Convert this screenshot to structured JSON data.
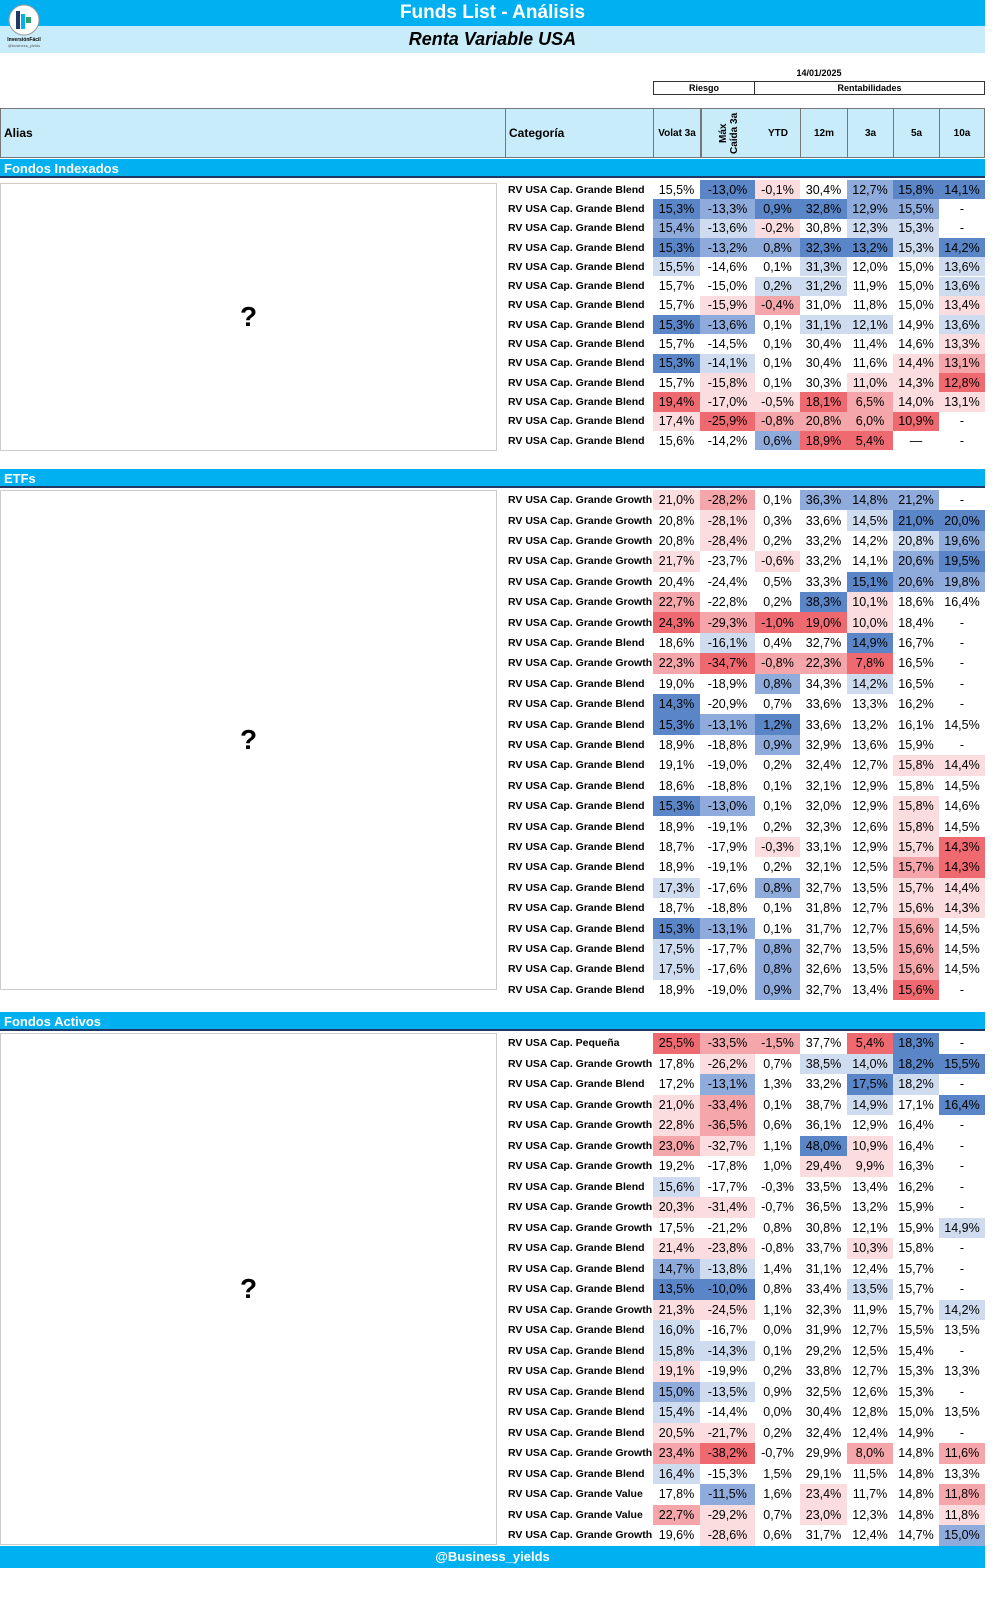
{
  "header": {
    "title": "Funds List - Análisis",
    "subtitle": "Renta Variable USA",
    "date": "14/01/2025",
    "group_riesgo": "Riesgo",
    "group_rent": "Rentabilidades",
    "logo_text": "InversiónFácil",
    "logo_handle": "@Business_yields"
  },
  "columns": {
    "alias": "Alias",
    "categoria": "Categoría",
    "volat": "Volat 3a",
    "maxcaida": "Máx Caída 3a",
    "ytd": "YTD",
    "m12": "12m",
    "a3": "3a",
    "a5": "5a",
    "a10": "10a"
  },
  "palette": {
    "B3": "#5a86c7",
    "B2": "#8fabdc",
    "B1": "#cfdcf0",
    "W": "#ffffff",
    "R1": "#fbdcdf",
    "R2": "#f5a6aa",
    "R3": "#ef6a70"
  },
  "footer": "@Business_yields",
  "sections": [
    {
      "name": "Fondos Indexados",
      "alias_placeholder": "?",
      "rows": [
        {
          "cat": "RV USA Cap. Grande Blend",
          "v": [
            "15,5%",
            "-13,0%",
            "-0,1%",
            "30,4%",
            "12,7%",
            "15,8%",
            "14,1%"
          ],
          "c": "W B3 R1 W B2 B3 B3"
        },
        {
          "cat": "RV USA Cap. Grande Blend",
          "v": [
            "15,3%",
            "-13,3%",
            "0,9%",
            "32,8%",
            "12,9%",
            "15,5%",
            "-"
          ],
          "c": "B3 B2 B3 B3 B2 B2 W"
        },
        {
          "cat": "RV USA Cap. Grande Blend",
          "v": [
            "15,4%",
            "-13,6%",
            "-0,2%",
            "30,8%",
            "12,3%",
            "15,3%",
            "-"
          ],
          "c": "B2 B1 R1 W B1 B1 W"
        },
        {
          "cat": "RV USA Cap. Grande Blend",
          "v": [
            "15,3%",
            "-13,2%",
            "0,8%",
            "32,3%",
            "13,2%",
            "15,3%",
            "14,2%"
          ],
          "c": "B3 B2 B2 B3 B3 B1 B3"
        },
        {
          "cat": "RV USA Cap. Grande Blend",
          "v": [
            "15,5%",
            "-14,6%",
            "0,1%",
            "31,3%",
            "12,0%",
            "15,0%",
            "13,6%"
          ],
          "c": "B1 W W B1 W W B1"
        },
        {
          "cat": "RV USA Cap. Grande Blend",
          "v": [
            "15,7%",
            "-15,0%",
            "0,2%",
            "31,2%",
            "11,9%",
            "15,0%",
            "13,6%"
          ],
          "c": "W W B1 B1 W W B1"
        },
        {
          "cat": "RV USA Cap. Grande Blend",
          "v": [
            "15,7%",
            "-15,9%",
            "-0,4%",
            "31,0%",
            "11,8%",
            "15,0%",
            "13,4%"
          ],
          "c": "W R1 R2 W W W R1"
        },
        {
          "cat": "RV USA Cap. Grande Blend",
          "v": [
            "15,3%",
            "-13,6%",
            "0,1%",
            "31,1%",
            "12,1%",
            "14,9%",
            "13,6%"
          ],
          "c": "B3 B2 W B1 B1 W B1"
        },
        {
          "cat": "RV USA Cap. Grande Blend",
          "v": [
            "15,7%",
            "-14,5%",
            "0,1%",
            "30,4%",
            "11,4%",
            "14,6%",
            "13,3%"
          ],
          "c": "W W W W W W R1"
        },
        {
          "cat": "RV USA Cap. Grande Blend",
          "v": [
            "15,3%",
            "-14,1%",
            "0,1%",
            "30,4%",
            "11,6%",
            "14,4%",
            "13,1%"
          ],
          "c": "B3 B1 W W W R1 R2"
        },
        {
          "cat": "RV USA Cap. Grande Blend",
          "v": [
            "15,7%",
            "-15,8%",
            "0,1%",
            "30,3%",
            "11,0%",
            "14,3%",
            "12,8%"
          ],
          "c": "W R1 W W R1 R1 R3"
        },
        {
          "cat": "RV USA Cap. Grande Blend",
          "v": [
            "19,4%",
            "-17,0%",
            "-0,5%",
            "18,1%",
            "6,5%",
            "14,0%",
            "13,1%"
          ],
          "c": "R3 R1 R1 R3 R2 R1 R1"
        },
        {
          "cat": "RV USA Cap. Grande Blend",
          "v": [
            "17,4%",
            "-25,9%",
            "-0,8%",
            "20,8%",
            "6,0%",
            "10,9%",
            "-"
          ],
          "c": "R1 R3 R2 R2 R2 R3 W"
        },
        {
          "cat": "RV USA Cap. Grande Blend",
          "v": [
            "15,6%",
            "-14,2%",
            "0,6%",
            "18,9%",
            "5,4%",
            "—",
            "-"
          ],
          "c": "W W B2 R3 R3 W W"
        }
      ]
    },
    {
      "name": "ETFs",
      "alias_placeholder": "?",
      "rows": [
        {
          "cat": "RV USA Cap. Grande Growth",
          "v": [
            "21,0%",
            "-28,2%",
            "0,1%",
            "36,3%",
            "14,8%",
            "21,2%",
            "-"
          ],
          "c": "R1 R2 W B2 B2 B2 W"
        },
        {
          "cat": "RV USA Cap. Grande Growth",
          "v": [
            "20,8%",
            "-28,1%",
            "0,3%",
            "33,6%",
            "14,5%",
            "21,0%",
            "20,0%"
          ],
          "c": "W R1 W W B1 B3 B3"
        },
        {
          "cat": "RV USA Cap. Grande Growth",
          "v": [
            "20,8%",
            "-28,4%",
            "0,2%",
            "33,2%",
            "14,2%",
            "20,8%",
            "19,6%"
          ],
          "c": "W R1 W W W B1 B2"
        },
        {
          "cat": "RV USA Cap. Grande Growth",
          "v": [
            "21,7%",
            "-23,7%",
            "-0,6%",
            "33,2%",
            "14,1%",
            "20,6%",
            "19,5%"
          ],
          "c": "R1 W R1 W W B2 B3"
        },
        {
          "cat": "RV USA Cap. Grande Growth",
          "v": [
            "20,4%",
            "-24,4%",
            "0,5%",
            "33,3%",
            "15,1%",
            "20,6%",
            "19,8%"
          ],
          "c": "W W W W B3 B2 B2"
        },
        {
          "cat": "RV USA Cap. Grande Growth",
          "v": [
            "22,7%",
            "-22,8%",
            "0,2%",
            "38,3%",
            "10,1%",
            "18,6%",
            "16,4%"
          ],
          "c": "R2 W W B3 R1 W W"
        },
        {
          "cat": "RV USA Cap. Grande Growth",
          "v": [
            "24,3%",
            "-29,3%",
            "-1,0%",
            "19,0%",
            "10,0%",
            "18,4%",
            "-"
          ],
          "c": "R3 R2 R3 R3 R1 W W"
        },
        {
          "cat": "RV USA Cap. Grande Blend",
          "v": [
            "18,6%",
            "-16,1%",
            "0,4%",
            "32,7%",
            "14,9%",
            "16,7%",
            "-"
          ],
          "c": "W B1 W W B3 W W"
        },
        {
          "cat": "RV USA Cap. Grande Growth",
          "v": [
            "22,3%",
            "-34,7%",
            "-0,8%",
            "22,3%",
            "7,8%",
            "16,5%",
            "-"
          ],
          "c": "R2 R3 R2 R2 R3 W W"
        },
        {
          "cat": "RV USA Cap. Grande Blend",
          "v": [
            "19,0%",
            "-18,9%",
            "0,8%",
            "34,3%",
            "14,2%",
            "16,5%",
            "-"
          ],
          "c": "W W B2 W B1 W W"
        },
        {
          "cat": "RV USA Cap. Grande Blend",
          "v": [
            "14,3%",
            "-20,9%",
            "0,7%",
            "33,6%",
            "13,3%",
            "16,2%",
            "-"
          ],
          "c": "B3 W W W W W W"
        },
        {
          "cat": "RV USA Cap. Grande Blend",
          "v": [
            "15,3%",
            "-13,1%",
            "1,2%",
            "33,6%",
            "13,2%",
            "16,1%",
            "14,5%"
          ],
          "c": "B3 B2 B3 W W W W"
        },
        {
          "cat": "RV USA Cap. Grande Blend",
          "v": [
            "18,9%",
            "-18,8%",
            "0,9%",
            "32,9%",
            "13,6%",
            "15,9%",
            "-"
          ],
          "c": "W W B2 W W W W"
        },
        {
          "cat": "RV USA Cap. Grande Blend",
          "v": [
            "19,1%",
            "-19,0%",
            "0,2%",
            "32,4%",
            "12,7%",
            "15,8%",
            "14,4%"
          ],
          "c": "W W W W W R1 R1"
        },
        {
          "cat": "RV USA Cap. Grande Blend",
          "v": [
            "18,6%",
            "-18,8%",
            "0,1%",
            "32,1%",
            "12,9%",
            "15,8%",
            "14,5%"
          ],
          "c": "W W W W W W W"
        },
        {
          "cat": "RV USA Cap. Grande Blend",
          "v": [
            "15,3%",
            "-13,0%",
            "0,1%",
            "32,0%",
            "12,9%",
            "15,8%",
            "14,6%"
          ],
          "c": "B3 B2 W W W R1 W"
        },
        {
          "cat": "RV USA Cap. Grande Blend",
          "v": [
            "18,9%",
            "-19,1%",
            "0,2%",
            "32,3%",
            "12,6%",
            "15,8%",
            "14,5%"
          ],
          "c": "W W W W W R1 W"
        },
        {
          "cat": "RV USA Cap. Grande Blend",
          "v": [
            "18,7%",
            "-17,9%",
            "-0,3%",
            "33,1%",
            "12,9%",
            "15,7%",
            "14,3%"
          ],
          "c": "W W R1 W W R1 R3"
        },
        {
          "cat": "RV USA Cap. Grande Blend",
          "v": [
            "18,9%",
            "-19,1%",
            "0,2%",
            "32,1%",
            "12,5%",
            "15,7%",
            "14,3%"
          ],
          "c": "W W W W W R2 R3"
        },
        {
          "cat": "RV USA Cap. Grande Blend",
          "v": [
            "17,3%",
            "-17,6%",
            "0,8%",
            "32,7%",
            "13,5%",
            "15,7%",
            "14,4%"
          ],
          "c": "B1 W B2 W W R1 R1"
        },
        {
          "cat": "RV USA Cap. Grande Blend",
          "v": [
            "18,7%",
            "-18,8%",
            "0,1%",
            "31,8%",
            "12,7%",
            "15,6%",
            "14,3%"
          ],
          "c": "W W W W W R1 R1"
        },
        {
          "cat": "RV USA Cap. Grande Blend",
          "v": [
            "15,3%",
            "-13,1%",
            "0,1%",
            "31,7%",
            "12,7%",
            "15,6%",
            "14,5%"
          ],
          "c": "B3 B2 W W W R2 W"
        },
        {
          "cat": "RV USA Cap. Grande Blend",
          "v": [
            "17,5%",
            "-17,7%",
            "0,8%",
            "32,7%",
            "13,5%",
            "15,6%",
            "14,5%"
          ],
          "c": "B1 W B2 W W R2 W"
        },
        {
          "cat": "RV USA Cap. Grande Blend",
          "v": [
            "17,5%",
            "-17,6%",
            "0,8%",
            "32,6%",
            "13,5%",
            "15,6%",
            "14,5%"
          ],
          "c": "B1 W B2 W W R2 W"
        },
        {
          "cat": "RV USA Cap. Grande Blend",
          "v": [
            "18,9%",
            "-19,0%",
            "0,9%",
            "32,7%",
            "13,4%",
            "15,6%",
            "-"
          ],
          "c": "W W B2 W W R3 W"
        }
      ]
    },
    {
      "name": "Fondos Activos",
      "alias_placeholder": "?",
      "rows": [
        {
          "cat": "RV USA Cap. Pequeña",
          "v": [
            "25,5%",
            "-33,5%",
            "-1,5%",
            "37,7%",
            "5,4%",
            "18,3%",
            "-"
          ],
          "c": "R3 R2 R2 W R3 B3 W"
        },
        {
          "cat": "RV USA Cap. Grande Growth",
          "v": [
            "17,8%",
            "-26,2%",
            "0,7%",
            "38,5%",
            "14,0%",
            "18,2%",
            "15,5%"
          ],
          "c": "W R1 W B1 B1 B3 B3"
        },
        {
          "cat": "RV USA Cap. Grande Blend",
          "v": [
            "17,2%",
            "-13,1%",
            "1,3%",
            "33,2%",
            "17,5%",
            "18,2%",
            "-"
          ],
          "c": "W B2 W W B3 B1 W"
        },
        {
          "cat": "RV USA Cap. Grande Growth",
          "v": [
            "21,0%",
            "-33,4%",
            "0,1%",
            "38,7%",
            "14,9%",
            "17,1%",
            "16,4%"
          ],
          "c": "R1 R2 W W B1 W B3"
        },
        {
          "cat": "RV USA Cap. Grande Growth",
          "v": [
            "22,8%",
            "-36,5%",
            "0,6%",
            "36,1%",
            "12,9%",
            "16,4%",
            "-"
          ],
          "c": "R1 R2 W W W W W"
        },
        {
          "cat": "RV USA Cap. Grande Growth",
          "v": [
            "23,0%",
            "-32,7%",
            "1,1%",
            "48,0%",
            "10,9%",
            "16,4%",
            "-"
          ],
          "c": "R2 R1 W B3 R1 W W"
        },
        {
          "cat": "RV USA Cap. Grande Growth",
          "v": [
            "19,2%",
            "-17,8%",
            "1,0%",
            "29,4%",
            "9,9%",
            "16,3%",
            "-"
          ],
          "c": "W W W R1 R1 W W"
        },
        {
          "cat": "RV USA Cap. Grande Blend",
          "v": [
            "15,6%",
            "-17,7%",
            "-0,3%",
            "33,5%",
            "13,4%",
            "16,2%",
            "-"
          ],
          "c": "B1 W W W W W W"
        },
        {
          "cat": "RV USA Cap. Grande Growth",
          "v": [
            "20,3%",
            "-31,4%",
            "-0,7%",
            "36,5%",
            "13,2%",
            "15,9%",
            "-"
          ],
          "c": "R1 R1 W W W W W"
        },
        {
          "cat": "RV USA Cap. Grande Growth",
          "v": [
            "17,5%",
            "-21,2%",
            "0,8%",
            "30,8%",
            "12,1%",
            "15,9%",
            "14,9%"
          ],
          "c": "W W W W W W B1"
        },
        {
          "cat": "RV USA Cap. Grande Blend",
          "v": [
            "21,4%",
            "-23,8%",
            "-0,8%",
            "33,7%",
            "10,3%",
            "15,8%",
            "-"
          ],
          "c": "R1 R1 W W R1 W W"
        },
        {
          "cat": "RV USA Cap. Grande Blend",
          "v": [
            "14,7%",
            "-13,8%",
            "1,4%",
            "31,1%",
            "12,4%",
            "15,7%",
            "-"
          ],
          "c": "B2 B1 W W W W W"
        },
        {
          "cat": "RV USA Cap. Grande Blend",
          "v": [
            "13,5%",
            "-10,0%",
            "0,8%",
            "33,4%",
            "13,5%",
            "15,7%",
            "-"
          ],
          "c": "B3 B3 W W B1 W W"
        },
        {
          "cat": "RV USA Cap. Grande Growth",
          "v": [
            "21,3%",
            "-24,5%",
            "1,1%",
            "32,3%",
            "11,9%",
            "15,7%",
            "14,2%"
          ],
          "c": "R1 R1 W W W W B1"
        },
        {
          "cat": "RV USA Cap. Grande Blend",
          "v": [
            "16,0%",
            "-16,7%",
            "0,0%",
            "31,9%",
            "12,7%",
            "15,5%",
            "13,5%"
          ],
          "c": "B1 W W W W W W"
        },
        {
          "cat": "RV USA Cap. Grande Blend",
          "v": [
            "15,8%",
            "-14,3%",
            "0,1%",
            "29,2%",
            "12,5%",
            "15,4%",
            "-"
          ],
          "c": "B1 B1 W W W W W"
        },
        {
          "cat": "RV USA Cap. Grande Blend",
          "v": [
            "19,1%",
            "-19,9%",
            "0,2%",
            "33,8%",
            "12,7%",
            "15,3%",
            "13,3%"
          ],
          "c": "R1 W W W W W W"
        },
        {
          "cat": "RV USA Cap. Grande Blend",
          "v": [
            "15,0%",
            "-13,5%",
            "0,9%",
            "32,5%",
            "12,6%",
            "15,3%",
            "-"
          ],
          "c": "B2 B1 W W W W W"
        },
        {
          "cat": "RV USA Cap. Grande Blend",
          "v": [
            "15,4%",
            "-14,4%",
            "0,0%",
            "30,4%",
            "12,8%",
            "15,0%",
            "13,5%"
          ],
          "c": "B1 W W W W W W"
        },
        {
          "cat": "RV USA Cap. Grande Blend",
          "v": [
            "20,5%",
            "-21,7%",
            "0,2%",
            "32,4%",
            "12,4%",
            "14,9%",
            "-"
          ],
          "c": "R1 R1 W W W W W"
        },
        {
          "cat": "RV USA Cap. Grande Growth",
          "v": [
            "23,4%",
            "-38,2%",
            "-0,7%",
            "29,9%",
            "8,0%",
            "14,8%",
            "11,6%"
          ],
          "c": "R2 R3 W W R2 W R2"
        },
        {
          "cat": "RV USA Cap. Grande Blend",
          "v": [
            "16,4%",
            "-15,3%",
            "1,5%",
            "29,1%",
            "11,5%",
            "14,8%",
            "13,3%"
          ],
          "c": "B1 W W W W W W"
        },
        {
          "cat": "RV USA Cap. Grande Value",
          "v": [
            "17,8%",
            "-11,5%",
            "1,6%",
            "23,4%",
            "11,7%",
            "14,8%",
            "11,8%"
          ],
          "c": "W B2 W R1 W W R2"
        },
        {
          "cat": "RV USA Cap. Grande Value",
          "v": [
            "22,7%",
            "-29,2%",
            "0,7%",
            "23,0%",
            "12,3%",
            "14,8%",
            "11,8%"
          ],
          "c": "R2 R1 W R1 W W R1"
        },
        {
          "cat": "RV USA Cap. Grande Growth",
          "v": [
            "19,6%",
            "-28,6%",
            "0,6%",
            "31,7%",
            "12,4%",
            "14,7%",
            "15,0%"
          ],
          "c": "W R1 W W W W B2"
        }
      ]
    }
  ]
}
